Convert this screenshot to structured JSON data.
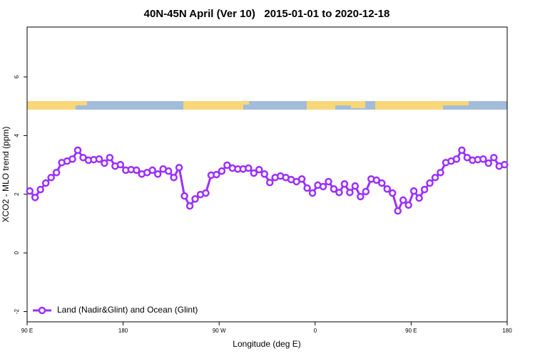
{
  "chart_data": {
    "type": "line",
    "title": "40N-45N April (Ver 10)   2015-01-01 to 2020-12-18",
    "xlabel": "Longitude (deg E)",
    "ylabel": "XCO2 - MLO trend (ppm)",
    "x": [
      92.5,
      97.5,
      102.5,
      107.5,
      112.5,
      117.5,
      122.5,
      127.5,
      132.5,
      137.5,
      142.5,
      147.5,
      152.5,
      157.5,
      162.5,
      167.5,
      172.5,
      177.5,
      182.5,
      187.5,
      192.5,
      197.5,
      202.5,
      207.5,
      212.5,
      217.5,
      222.5,
      227.5,
      232.5,
      237.5,
      242.5,
      247.5,
      252.5,
      257.5,
      262.5,
      267.5,
      272.5,
      277.5,
      282.5,
      287.5,
      292.5,
      297.5,
      302.5,
      307.5,
      312.5,
      317.5,
      322.5,
      327.5,
      332.5,
      337.5,
      342.5,
      347.5,
      352.5,
      357.5,
      362.5,
      367.5,
      372.5,
      377.5,
      382.5,
      387.5,
      392.5,
      397.5,
      402.5,
      407.5,
      412.5,
      417.5,
      422.5,
      427.5,
      432.5,
      437.5,
      442.5,
      447.5,
      452.5,
      457.5,
      462.5,
      467.5,
      472.5,
      477.5,
      482.5,
      487.5,
      492.5,
      497.5,
      502.5,
      507.5,
      512.5,
      517.5,
      522.5,
      527.5,
      532.5,
      537.5
    ],
    "series": [
      {
        "name": "Land (Nadir&Glint) and Ocean (Glint)",
        "color": "#9b30ff",
        "values": [
          2.11,
          1.89,
          2.16,
          2.38,
          2.57,
          2.74,
          3.08,
          3.13,
          3.2,
          3.5,
          3.25,
          3.16,
          3.18,
          3.2,
          3.06,
          3.25,
          2.96,
          3.01,
          2.82,
          2.84,
          2.82,
          2.69,
          2.74,
          2.82,
          2.69,
          2.86,
          2.79,
          2.57,
          2.91,
          1.94,
          1.6,
          1.84,
          1.99,
          2.04,
          2.65,
          2.67,
          2.79,
          2.99,
          2.89,
          2.86,
          2.86,
          2.89,
          2.72,
          2.84,
          2.69,
          2.4,
          2.57,
          2.62,
          2.57,
          2.5,
          2.43,
          2.52,
          2.21,
          2.04,
          2.31,
          2.26,
          2.43,
          2.18,
          2.06,
          2.35,
          2.06,
          2.28,
          1.92,
          2.09,
          2.52,
          2.48,
          2.38,
          2.18,
          2.04,
          1.43,
          1.8,
          1.63,
          2.11,
          1.87,
          2.16,
          2.38,
          2.57,
          2.74,
          3.08,
          3.13,
          3.2,
          3.5,
          3.25,
          3.16,
          3.18,
          3.2,
          3.06,
          3.25,
          2.96,
          3.01
        ]
      }
    ],
    "xlim": [
      90,
      540
    ],
    "xticks": [
      {
        "value": 90,
        "label": "90 E"
      },
      180,
      {
        "value": 270,
        "label": "90 W"
      },
      {
        "value": 360,
        "label": "0"
      },
      {
        "value": 450,
        "label": "90 E"
      },
      {
        "value": 540,
        "label": "180"
      }
    ],
    "ylim": [
      -2.35,
      7.7
    ],
    "yticks": [
      -2,
      0,
      2,
      4,
      6
    ],
    "legend": "bottom-left"
  }
}
